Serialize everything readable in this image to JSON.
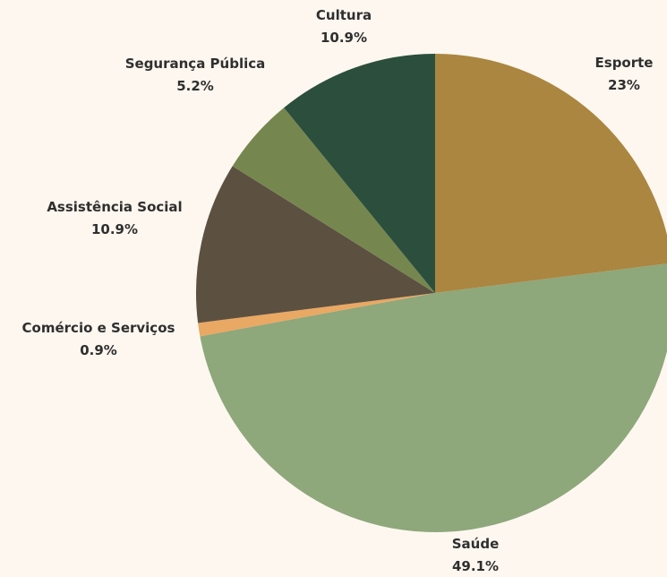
{
  "chart_data": {
    "type": "pie",
    "title": "",
    "start_angle_deg": 0,
    "direction": "clockwise",
    "slices": [
      {
        "label": "Esporte",
        "value": 23,
        "display": "23%",
        "color": "#ab8640"
      },
      {
        "label": "Saúde",
        "value": 49.1,
        "display": "49.1%",
        "color": "#8ea77b"
      },
      {
        "label": "Comércio e Serviços",
        "value": 0.9,
        "display": "0.9%",
        "color": "#e9a863"
      },
      {
        "label": "Assistência Social",
        "value": 10.9,
        "display": "10.9%",
        "color": "#5c5041"
      },
      {
        "label": "Segurança Pública",
        "value": 5.2,
        "display": "5.2%",
        "color": "#76864f"
      },
      {
        "label": "Cultura",
        "value": 10.9,
        "display": "10.9%",
        "color": "#2b4f3c"
      }
    ],
    "background": "#fdf7ef"
  }
}
